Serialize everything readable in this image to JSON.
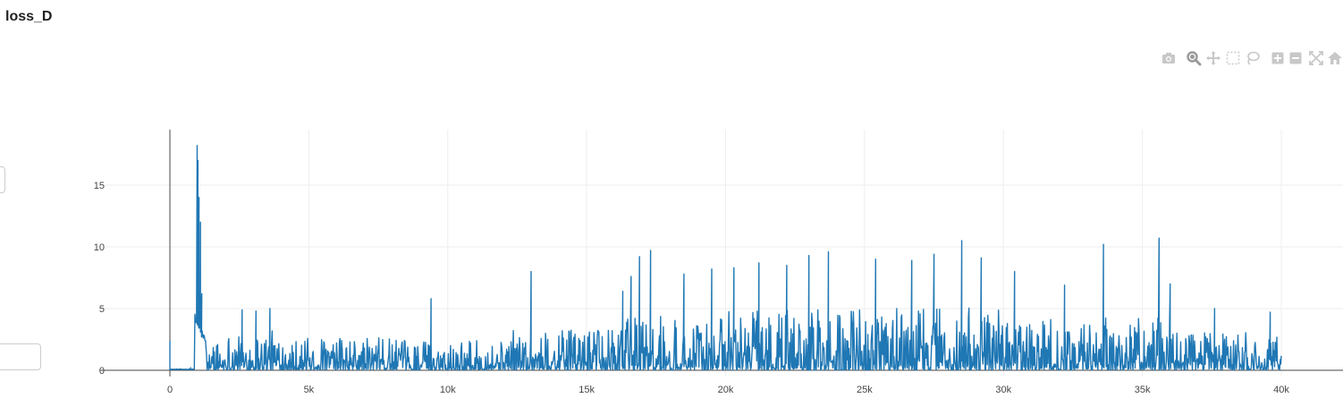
{
  "title": "loss_D",
  "modebar": {
    "icons": [
      "camera-icon",
      "zoom-icon",
      "pan-icon",
      "box-select-icon",
      "lasso-icon",
      "zoom-in-icon",
      "zoom-out-icon",
      "autoscale-icon",
      "reset-axes-icon"
    ],
    "color": "#c8c8c8"
  },
  "chart_data": {
    "type": "line",
    "title": "loss_D",
    "xlabel": "",
    "ylabel": "",
    "xlim": [
      -2500,
      42500
    ],
    "ylim": [
      -0.5,
      19.5
    ],
    "x_ticks": [
      0,
      5000,
      10000,
      15000,
      20000,
      25000,
      30000,
      35000,
      40000
    ],
    "x_tick_labels": [
      "0",
      "5k",
      "10k",
      "15k",
      "20k",
      "25k",
      "30k",
      "35k",
      "40k"
    ],
    "y_ticks": [
      0,
      5,
      10,
      15
    ],
    "y_tick_labels": [
      "0",
      "5",
      "10",
      "15"
    ],
    "grid": true,
    "line_color": "#1f77b4",
    "series": [
      {
        "x_range": [
          0,
          40000
        ],
        "peaks": [
          {
            "x": 0,
            "y": 2.4
          },
          {
            "x": 750,
            "y": 0.2
          },
          {
            "x": 980,
            "y": 18.2
          },
          {
            "x": 1010,
            "y": 17.0
          },
          {
            "x": 1050,
            "y": 14.0
          },
          {
            "x": 1100,
            "y": 12.0
          },
          {
            "x": 1150,
            "y": 6.2
          },
          {
            "x": 2600,
            "y": 4.9
          },
          {
            "x": 3100,
            "y": 4.8
          },
          {
            "x": 3600,
            "y": 5.0
          },
          {
            "x": 9400,
            "y": 5.8
          },
          {
            "x": 13000,
            "y": 8.0
          },
          {
            "x": 16300,
            "y": 6.4
          },
          {
            "x": 16600,
            "y": 7.6
          },
          {
            "x": 16900,
            "y": 9.2
          },
          {
            "x": 17300,
            "y": 9.7
          },
          {
            "x": 18500,
            "y": 7.8
          },
          {
            "x": 19500,
            "y": 8.2
          },
          {
            "x": 20300,
            "y": 8.3
          },
          {
            "x": 21200,
            "y": 8.7
          },
          {
            "x": 22200,
            "y": 8.5
          },
          {
            "x": 23000,
            "y": 9.3
          },
          {
            "x": 23700,
            "y": 9.6
          },
          {
            "x": 25400,
            "y": 9.0
          },
          {
            "x": 26700,
            "y": 8.9
          },
          {
            "x": 27500,
            "y": 9.4
          },
          {
            "x": 28500,
            "y": 10.5
          },
          {
            "x": 29200,
            "y": 9.1
          },
          {
            "x": 30400,
            "y": 8.0
          },
          {
            "x": 32200,
            "y": 6.9
          },
          {
            "x": 33600,
            "y": 10.2
          },
          {
            "x": 35600,
            "y": 10.7
          },
          {
            "x": 36000,
            "y": 7.0
          },
          {
            "x": 37600,
            "y": 5.0
          },
          {
            "x": 39600,
            "y": 4.7
          }
        ]
      }
    ]
  }
}
